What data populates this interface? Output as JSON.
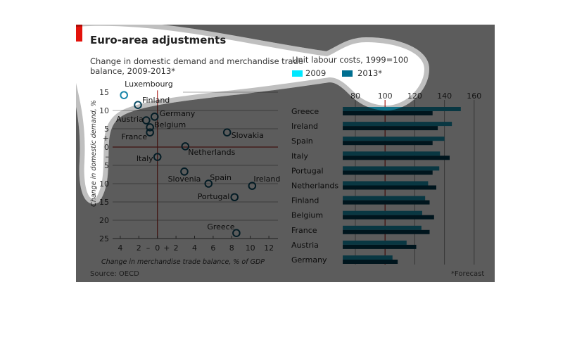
{
  "header": {
    "title": "Euro-area adjustments",
    "left_subtitle_1": "Change in domestic demand and merchandise trade",
    "left_subtitle_2": "balance, 2009-2013*",
    "right_subtitle": "Unit labour costs, 1999=100",
    "source": "Source: OECD",
    "footnote": "*Forecast"
  },
  "colors": {
    "accent_red": "#e3120b",
    "series_2009": "#00e8ff",
    "series_2013": "#006f91",
    "marker": "#0d6c8c",
    "zero_line": "#b0302a"
  },
  "chart_data": [
    {
      "type": "scatter",
      "xlabel": "Change in merchandise trade balance, % of GDP",
      "ylabel": "Change in domestic demand, %",
      "xlim": [
        -5,
        13
      ],
      "ylim": [
        -25,
        15
      ],
      "x_ticks": [
        "4",
        "2",
        "–",
        "0",
        "+",
        "2",
        "4",
        "6",
        "8",
        "10",
        "12"
      ],
      "y_ticks": [
        "15",
        "10",
        "5",
        "+",
        "0",
        "–",
        "5",
        "10",
        "15",
        "20",
        "25"
      ],
      "points": [
        {
          "label": "Luxembourg",
          "x": -3.6,
          "y": 14.2
        },
        {
          "label": "Finland",
          "x": -2.1,
          "y": 11.5
        },
        {
          "label": "Austria",
          "x": -1.2,
          "y": 7.3
        },
        {
          "label": "Germany",
          "x": -0.3,
          "y": 8.3
        },
        {
          "label": "Belgium",
          "x": -0.8,
          "y": 5.4
        },
        {
          "label": "France",
          "x": -0.8,
          "y": 4.0
        },
        {
          "label": "Slovakia",
          "x": 7.5,
          "y": 4.0
        },
        {
          "label": "Netherlands",
          "x": 3.0,
          "y": 0.2
        },
        {
          "label": "Italy",
          "x": 0.0,
          "y": -2.7
        },
        {
          "label": "Slovenia",
          "x": 2.9,
          "y": -6.7
        },
        {
          "label": "Spain",
          "x": 5.5,
          "y": -10.0
        },
        {
          "label": "Ireland",
          "x": 10.2,
          "y": -10.6
        },
        {
          "label": "Portugal",
          "x": 8.3,
          "y": -13.7
        },
        {
          "label": "Greece",
          "x": 8.5,
          "y": -23.5
        }
      ]
    },
    {
      "type": "bar",
      "orientation": "horizontal",
      "title": "Unit labour costs, 1999=100",
      "xlim": [
        71.5,
        162
      ],
      "x_ticks": [
        "80",
        "100",
        "120",
        "140",
        "160"
      ],
      "reference_line": 100,
      "legend": [
        "2009",
        "2013*"
      ],
      "legend_position": "top",
      "categories": [
        "Greece",
        "Ireland",
        "Spain",
        "Italy",
        "Portugal",
        "Netherlands",
        "Finland",
        "Belgium",
        "France",
        "Austria",
        "Germany"
      ],
      "series": [
        {
          "name": "2009",
          "values": [
            151,
            145,
            140,
            137,
            136.5,
            129,
            127,
            125,
            124.5,
            114.5,
            105
          ]
        },
        {
          "name": "2013*",
          "values": [
            132,
            135.5,
            132,
            143.5,
            132,
            134.5,
            130,
            133,
            130,
            121,
            108.5
          ]
        }
      ]
    }
  ]
}
